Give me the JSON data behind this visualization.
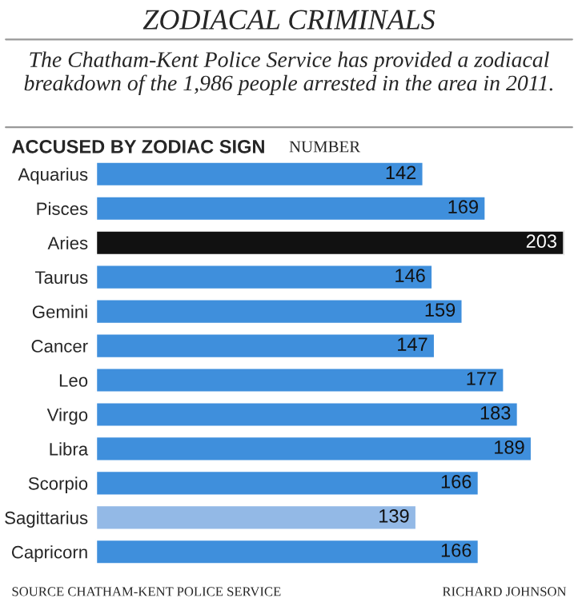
{
  "chart_data": {
    "type": "bar",
    "orientation": "horizontal",
    "title": "ZODIACAL CRIMINALS",
    "subtitle": "The Chatham-Kent Police Service has provided a zodiacal breakdown of the 1,986 people arrested in the area in 2011.",
    "categories": [
      "Aquarius",
      "Pisces",
      "Aries",
      "Taurus",
      "Gemini",
      "Cancer",
      "Leo",
      "Virgo",
      "Libra",
      "Scorpio",
      "Sagittarius",
      "Capricorn"
    ],
    "values": [
      142,
      169,
      203,
      146,
      159,
      147,
      177,
      183,
      189,
      166,
      139,
      166
    ],
    "colors": [
      "#3f8fdc",
      "#3f8fdc",
      "#111111",
      "#3f8fdc",
      "#3f8fdc",
      "#3f8fdc",
      "#3f8fdc",
      "#3f8fdc",
      "#3f8fdc",
      "#3f8fdc",
      "#93b9e6",
      "#3f8fdc"
    ],
    "data_labels": true,
    "grid": false,
    "legend": false,
    "annotations": [
      "ACCUSED BY ZODIAC SIGN",
      "NUMBER",
      "SOURCE CHATHAM-KENT POLICE SERVICE",
      "RICHARD JOHNSON"
    ]
  }
}
